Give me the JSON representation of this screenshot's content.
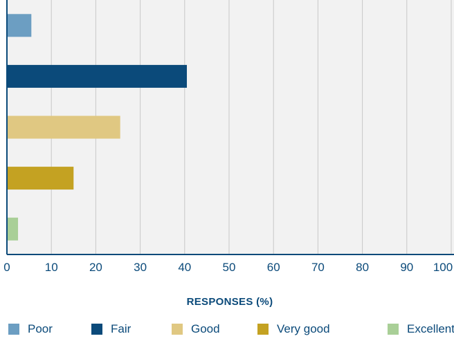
{
  "chart_data": {
    "type": "bar",
    "orientation": "horizontal",
    "categories": [
      "Poor",
      "Fair",
      "Good",
      "Very good",
      "Excellent"
    ],
    "values": [
      5.5,
      40.5,
      25.5,
      15,
      2.5
    ],
    "colors": [
      "#6c9ec2",
      "#0b4a7a",
      "#e0c882",
      "#c4a222",
      "#a9cf97"
    ],
    "title": "",
    "xlabel": "RESPONSES (%)",
    "ylabel": "",
    "xlim": [
      0,
      100
    ],
    "xticks": [
      0,
      10,
      20,
      30,
      40,
      50,
      60,
      70,
      80,
      90,
      100
    ],
    "grid": true,
    "legend_position": "bottom",
    "legend": [
      "Poor",
      "Fair",
      "Good",
      "Very good",
      "Excellent"
    ]
  }
}
